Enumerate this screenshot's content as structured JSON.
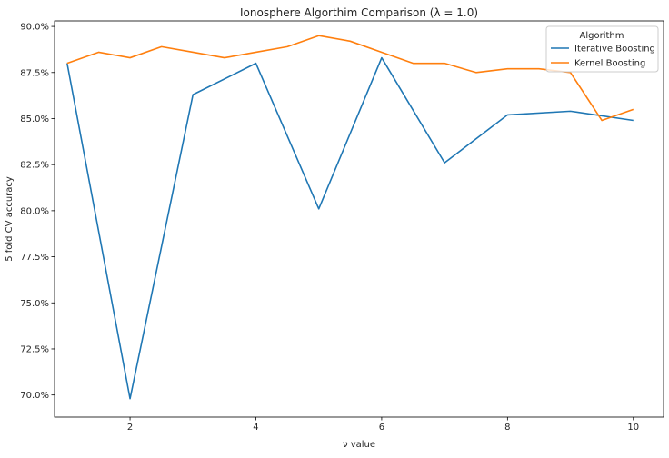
{
  "chart_data": {
    "type": "line",
    "title": "Ionosphere Algorthim Comparison (λ = 1.0)",
    "xlabel": "ν value",
    "ylabel": "5 fold CV accuracy",
    "xlim": [
      0.8,
      10.48
    ],
    "ylim": [
      68.8,
      90.3
    ],
    "x_ticks": [
      2,
      4,
      6,
      8,
      10
    ],
    "y_ticks": [
      70.0,
      72.5,
      75.0,
      77.5,
      80.0,
      82.5,
      85.0,
      87.5,
      90.0
    ],
    "y_tick_labels": [
      "70.0%",
      "72.5%",
      "75.0%",
      "77.5%",
      "80.0%",
      "82.5%",
      "85.0%",
      "87.5%",
      "90.0%"
    ],
    "grid": false,
    "legend": {
      "title": "Algorithm",
      "placement": "top-right"
    },
    "series": [
      {
        "name": "Iterative Boosting",
        "color": "#1f77b4",
        "x": [
          1,
          2,
          3,
          4,
          5,
          6,
          7,
          8,
          9,
          10
        ],
        "y": [
          88.0,
          69.8,
          86.3,
          88.0,
          80.1,
          88.3,
          82.6,
          85.2,
          85.4,
          84.9
        ]
      },
      {
        "name": "Kernel Boosting",
        "color": "#ff7f0e",
        "x": [
          1,
          1.5,
          2,
          2.5,
          3,
          3.5,
          4,
          4.5,
          5,
          5.5,
          6,
          6.5,
          7,
          7.5,
          8,
          8.5,
          9,
          9.5,
          10
        ],
        "y": [
          88.0,
          88.6,
          88.3,
          88.9,
          88.6,
          88.3,
          88.6,
          88.9,
          89.5,
          89.2,
          88.6,
          88.0,
          88.0,
          87.5,
          87.7,
          87.7,
          87.5,
          84.9,
          85.5
        ]
      }
    ]
  }
}
